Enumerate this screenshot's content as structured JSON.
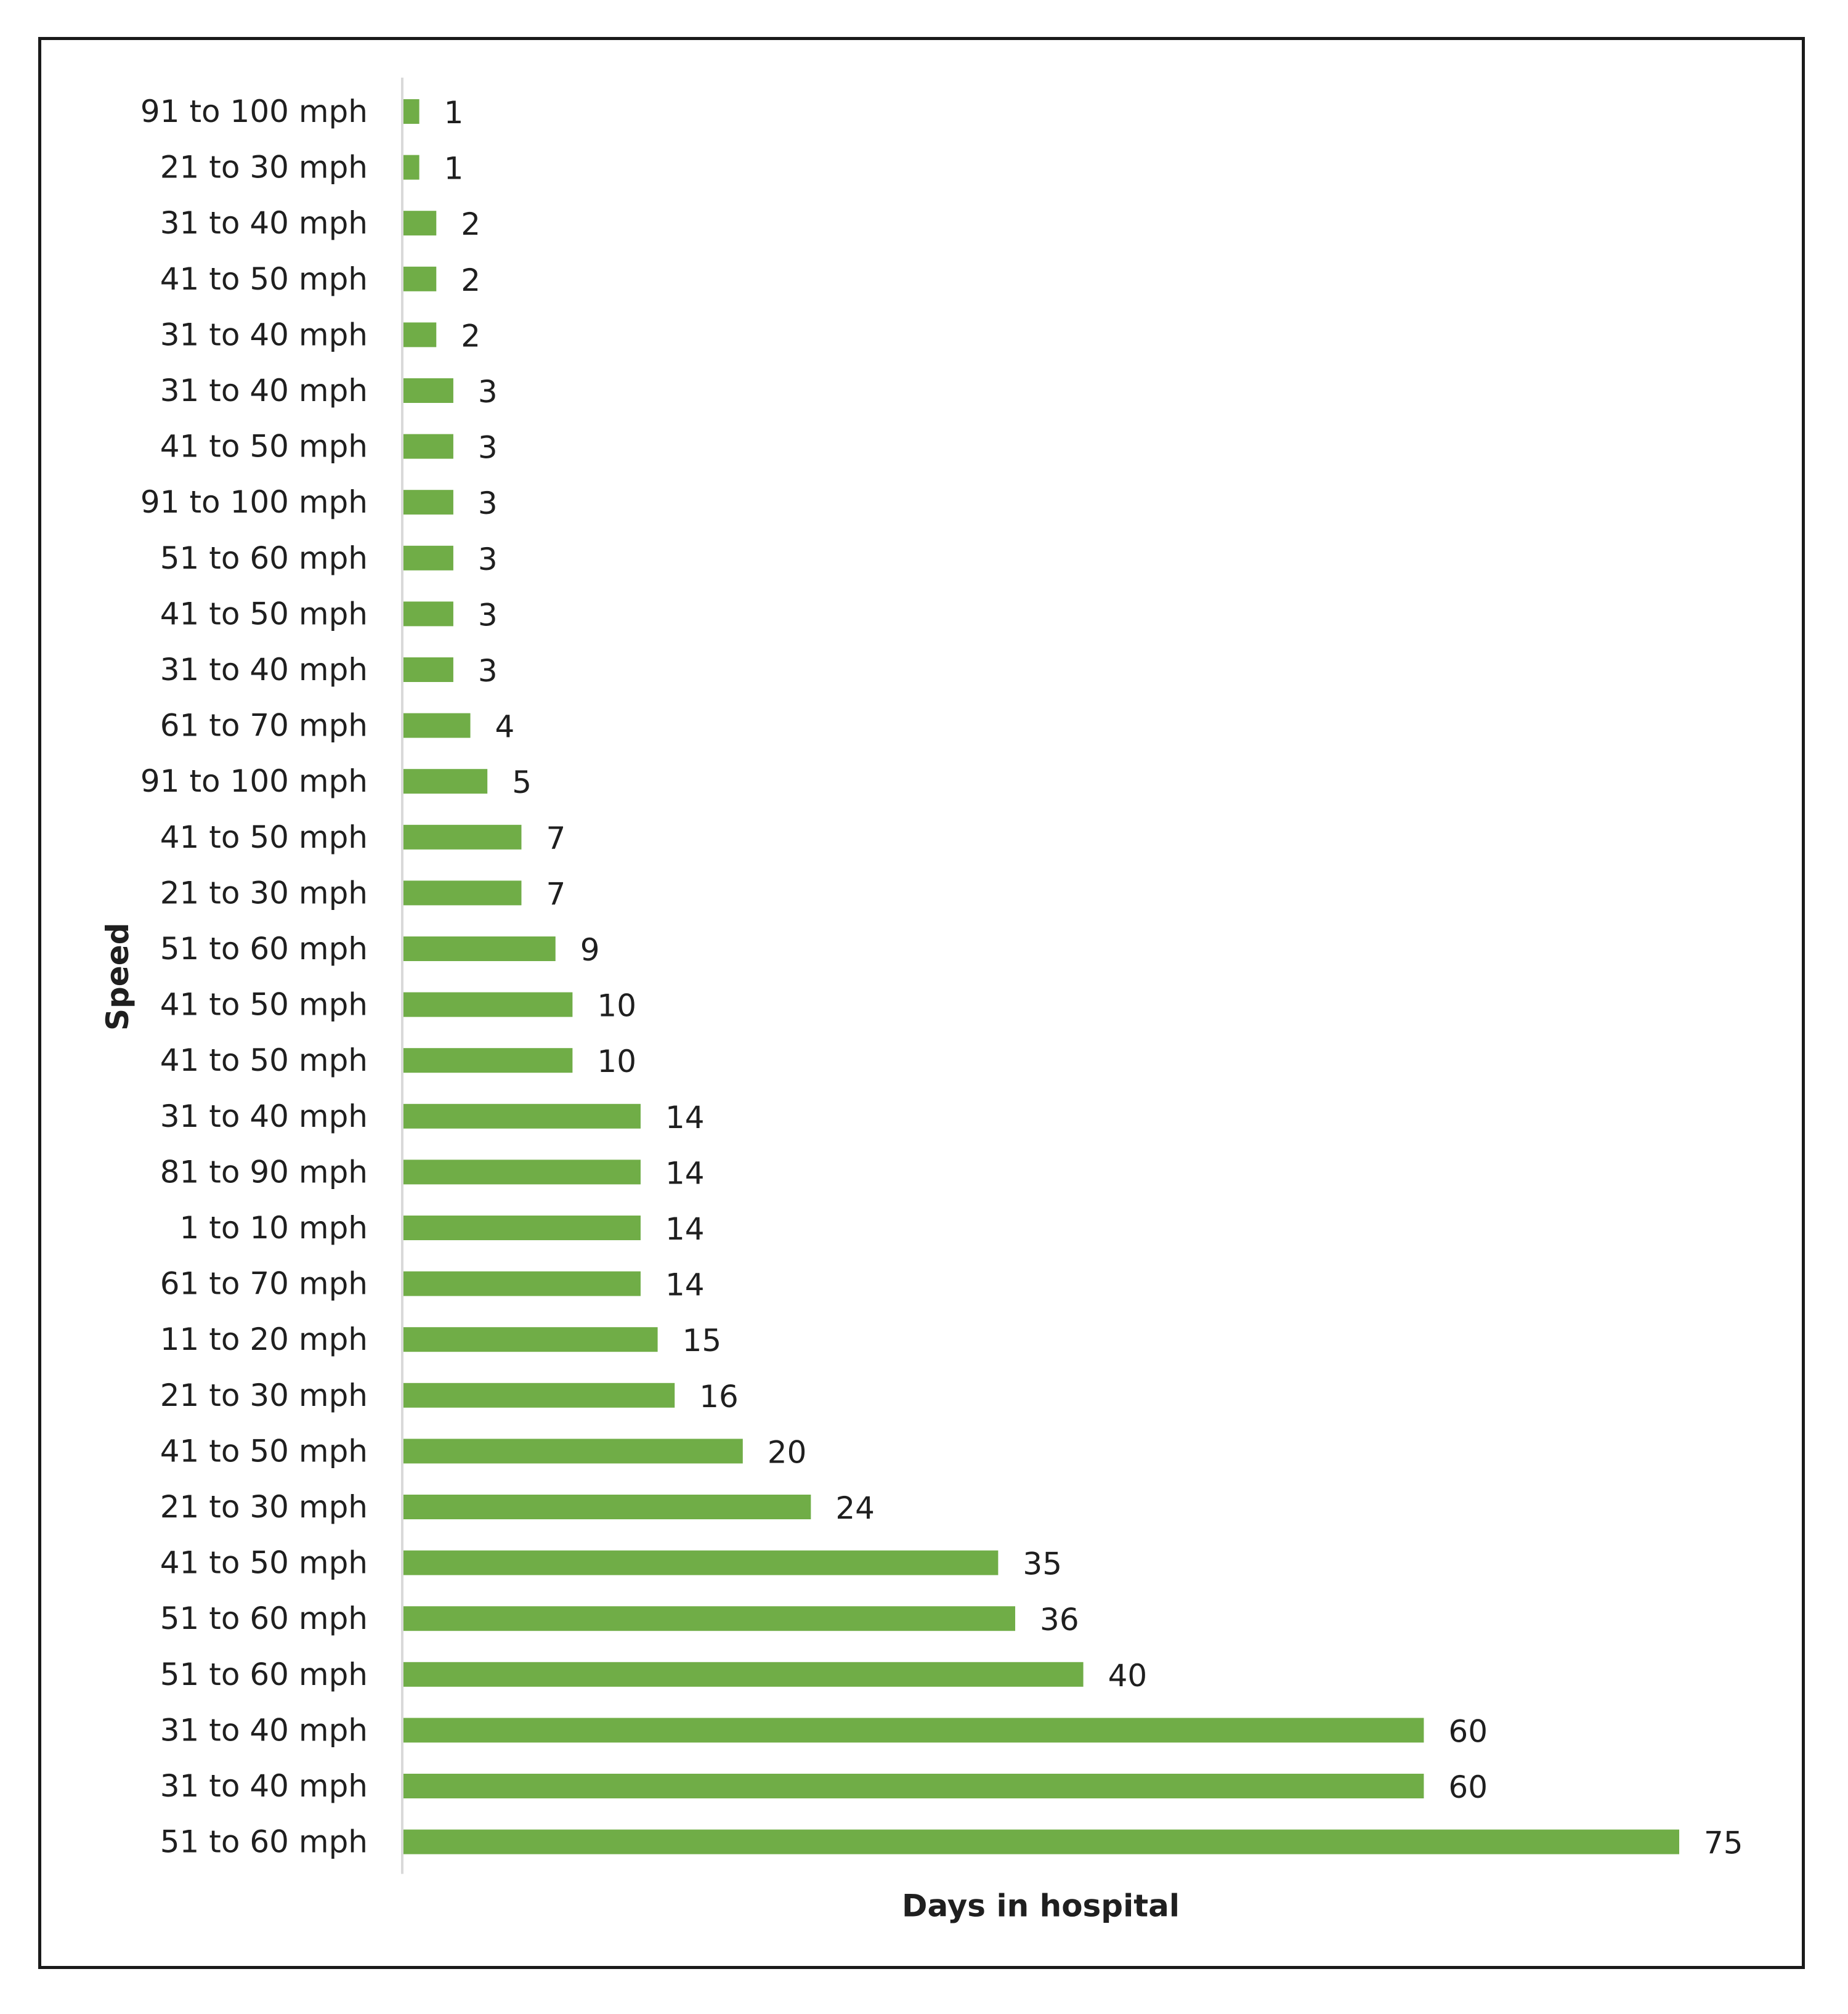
{
  "chart_data": {
    "type": "bar",
    "orientation": "horizontal",
    "title": "",
    "xlabel": "Days in hospital",
    "ylabel": "Speed",
    "xlim": [
      0,
      75
    ],
    "grid": false,
    "legend": "none",
    "bar_color": "#70ad47",
    "axis_color": "#d9d9d9",
    "categories": [
      "91 to 100 mph",
      "21 to 30 mph",
      "31 to 40 mph",
      "41 to 50 mph",
      "31 to 40 mph",
      "31 to 40 mph",
      "41 to 50 mph",
      "91 to 100 mph",
      "51 to 60 mph",
      "41 to 50 mph",
      "31 to 40 mph",
      "61 to 70 mph",
      "91 to 100 mph",
      "41 to 50 mph",
      "21 to 30 mph",
      "51 to 60 mph",
      "41 to 50 mph",
      "41 to 50 mph",
      "31 to 40 mph",
      "81 to 90 mph",
      "1 to 10 mph",
      "61 to 70 mph",
      "11 to 20 mph",
      "21 to 30 mph",
      "41 to 50 mph",
      "21 to 30 mph",
      "41 to 50 mph",
      "51 to 60 mph",
      "51 to 60 mph",
      "31 to 40 mph",
      "31 to 40 mph",
      "51 to 60 mph"
    ],
    "values": [
      1,
      1,
      2,
      2,
      2,
      3,
      3,
      3,
      3,
      3,
      3,
      4,
      5,
      7,
      7,
      9,
      10,
      10,
      14,
      14,
      14,
      14,
      15,
      16,
      20,
      24,
      35,
      36,
      40,
      60,
      60,
      75
    ]
  }
}
